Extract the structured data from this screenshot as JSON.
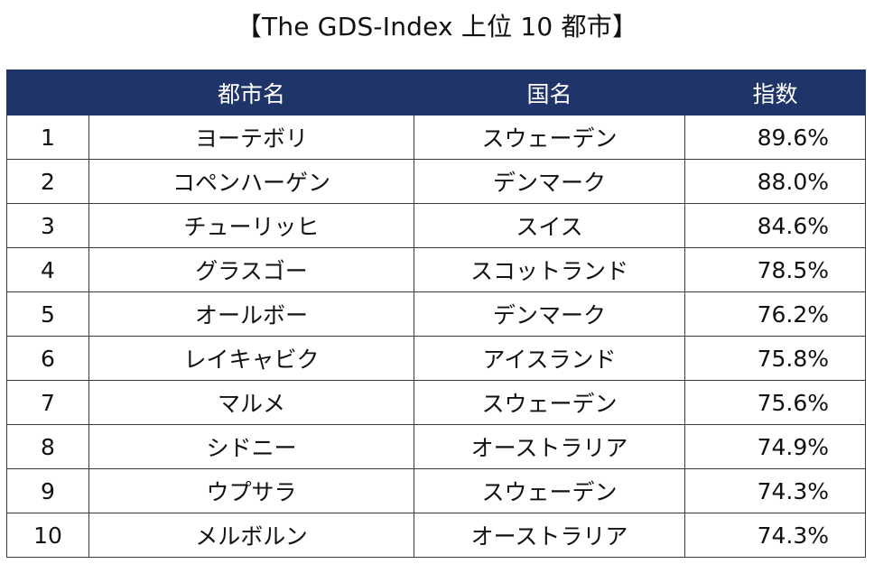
{
  "title": "【The GDS-Index 上位 10 都市】",
  "table": {
    "headers": {
      "rank": "",
      "city": "都市名",
      "country": "国名",
      "index": "指数"
    },
    "rows": [
      {
        "rank": "1",
        "city": "ヨーテボリ",
        "country": "スウェーデン",
        "index": "89.6%"
      },
      {
        "rank": "2",
        "city": "コペンハーゲン",
        "country": "デンマーク",
        "index": "88.0%"
      },
      {
        "rank": "3",
        "city": "チューリッヒ",
        "country": "スイス",
        "index": "84.6%"
      },
      {
        "rank": "4",
        "city": "グラスゴー",
        "country": "スコットランド",
        "index": "78.5%"
      },
      {
        "rank": "5",
        "city": "オールボー",
        "country": "デンマーク",
        "index": "76.2%"
      },
      {
        "rank": "6",
        "city": "レイキャビク",
        "country": "アイスランド",
        "index": "75.8%"
      },
      {
        "rank": "7",
        "city": "マルメ",
        "country": "スウェーデン",
        "index": "75.6%"
      },
      {
        "rank": "8",
        "city": "シドニー",
        "country": "オーストラリア",
        "index": "74.9%"
      },
      {
        "rank": "9",
        "city": "ウプサラ",
        "country": "スウェーデン",
        "index": "74.3%"
      },
      {
        "rank": "10",
        "city": "メルボルン",
        "country": "オーストラリア",
        "index": "74.3%"
      }
    ]
  },
  "colors": {
    "header_background": "#1f3469",
    "header_text": "#ffffff",
    "border": "#3a3a3a"
  }
}
